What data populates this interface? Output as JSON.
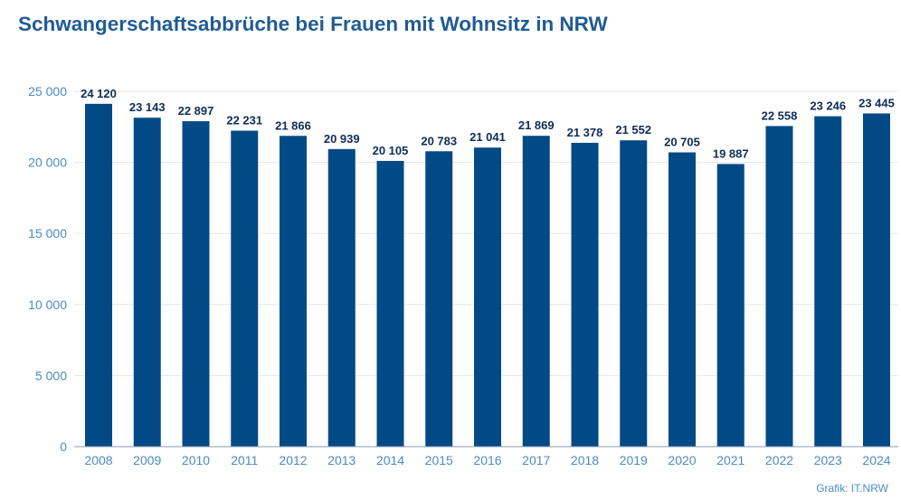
{
  "chart_data": {
    "type": "bar",
    "title": "Schwangerschaftsabbrüche bei Frauen mit Wohnsitz in NRW",
    "xlabel": "",
    "ylabel": "",
    "categories": [
      "2008",
      "2009",
      "2010",
      "2011",
      "2012",
      "2013",
      "2014",
      "2015",
      "2016",
      "2017",
      "2018",
      "2019",
      "2020",
      "2021",
      "2022",
      "2023",
      "2024"
    ],
    "values": [
      24120,
      23143,
      22897,
      22231,
      21866,
      20939,
      20105,
      20783,
      21041,
      21869,
      21378,
      21552,
      20705,
      19887,
      22558,
      23246,
      23445
    ],
    "value_labels": [
      "24 120",
      "23 143",
      "22 897",
      "22 231",
      "21 866",
      "20 939",
      "20 105",
      "20 783",
      "21 041",
      "21 869",
      "21 378",
      "21 552",
      "20 705",
      "19 887",
      "22 558",
      "23 246",
      "23 445"
    ],
    "ylim": [
      0,
      25000
    ],
    "yticks": [
      0,
      5000,
      10000,
      15000,
      20000,
      25000
    ],
    "ytick_labels": [
      "0",
      "5 000",
      "10 000",
      "15 000",
      "20 000",
      "25 000"
    ],
    "grid": true,
    "legend": "none",
    "colors": {
      "bar": "#024a86",
      "title": "#1f5b94",
      "tick": "#4a8cc0",
      "label": "#0f2d57",
      "grid": "#e6e6e6"
    }
  },
  "credit": "Grafik: IT.NRW"
}
